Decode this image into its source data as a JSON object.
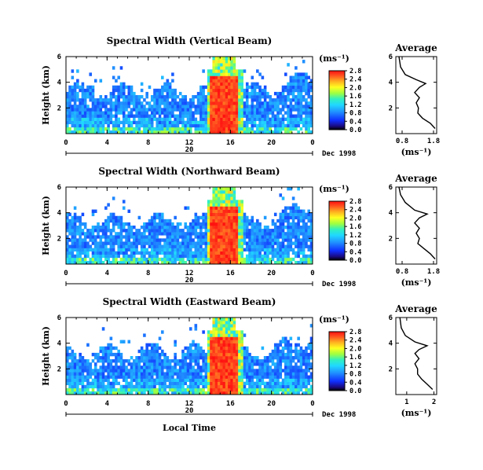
{
  "chart_data": {
    "type": "heatmap",
    "xlabel": "Local Time",
    "panels": [
      {
        "title": "Spectral Width (Vertical Beam)",
        "ylabel": "Height (km)",
        "yticks": [
          "2",
          "4",
          "6"
        ],
        "ylim": [
          0,
          6
        ],
        "xticks": [
          "0",
          "4",
          "8",
          "12",
          "16",
          "20",
          "0"
        ],
        "xlim": [
          0,
          24
        ],
        "day_label": "20",
        "date_label": "Dec 1998",
        "colorbar": {
          "unit": "(ms⁻¹)",
          "ticks": [
            "0.0",
            "0.4",
            "0.8",
            "1.2",
            "1.6",
            "2.0",
            "2.4",
            "2.8"
          ],
          "range": [
            0,
            2.8
          ]
        },
        "average": {
          "title": "Average",
          "xlabel": "(ms⁻¹)",
          "xticks": [
            "0.8",
            "1.8"
          ],
          "xlim": [
            0.6,
            1.9
          ],
          "yticks": [
            "2",
            "4",
            "6"
          ],
          "profile": [
            [
              1.85,
              0.4
            ],
            [
              1.7,
              0.8
            ],
            [
              1.45,
              1.2
            ],
            [
              1.3,
              1.6
            ],
            [
              1.32,
              2.0
            ],
            [
              1.25,
              2.4
            ],
            [
              1.35,
              2.8
            ],
            [
              1.2,
              3.2
            ],
            [
              1.35,
              3.6
            ],
            [
              1.55,
              3.9
            ],
            [
              1.25,
              4.2
            ],
            [
              0.9,
              4.6
            ],
            [
              0.75,
              5.2
            ],
            [
              0.7,
              6.0
            ]
          ]
        }
      },
      {
        "title": "Spectral Width (Northward Beam)",
        "ylabel": "Height (km)",
        "yticks": [
          "2",
          "4",
          "6"
        ],
        "ylim": [
          0,
          6
        ],
        "xticks": [
          "0",
          "4",
          "8",
          "12",
          "16",
          "20",
          "0"
        ],
        "xlim": [
          0,
          24
        ],
        "day_label": "20",
        "date_label": "Dec 1998",
        "colorbar": {
          "unit": "(ms⁻¹)",
          "ticks": [
            "0.0",
            "0.4",
            "0.8",
            "1.2",
            "1.6",
            "2.0",
            "2.4",
            "2.8"
          ],
          "range": [
            0,
            2.8
          ]
        },
        "average": {
          "title": "Average",
          "xlabel": "(ms⁻¹)",
          "xticks": [
            "0.8",
            "1.8"
          ],
          "xlim": [
            0.6,
            1.9
          ],
          "yticks": [
            "2",
            "4",
            "6"
          ],
          "profile": [
            [
              1.85,
              0.4
            ],
            [
              1.7,
              0.8
            ],
            [
              1.5,
              1.2
            ],
            [
              1.3,
              1.6
            ],
            [
              1.35,
              2.0
            ],
            [
              1.25,
              2.4
            ],
            [
              1.35,
              2.8
            ],
            [
              1.2,
              3.2
            ],
            [
              1.35,
              3.6
            ],
            [
              1.6,
              3.9
            ],
            [
              1.2,
              4.2
            ],
            [
              0.9,
              4.8
            ],
            [
              0.75,
              5.4
            ],
            [
              0.7,
              6.0
            ]
          ]
        }
      },
      {
        "title": "Spectral Width (Eastward Beam)",
        "ylabel": "Height (km)",
        "yticks": [
          "2",
          "4",
          "6"
        ],
        "ylim": [
          0,
          6
        ],
        "xticks": [
          "0",
          "4",
          "8",
          "12",
          "16",
          "20",
          "0"
        ],
        "xlim": [
          0,
          24
        ],
        "day_label": "20",
        "date_label": "Dec 1998",
        "colorbar": {
          "unit": "(ms⁻¹)",
          "ticks": [
            "0.0",
            "0.4",
            "0.8",
            "1.2",
            "1.6",
            "2.0",
            "2.4",
            "2.8"
          ],
          "range": [
            0,
            2.8
          ]
        },
        "average": {
          "title": "Average",
          "xlabel": "(ms⁻¹)",
          "xticks": [
            "1",
            "2"
          ],
          "xlim": [
            0.6,
            2.1
          ],
          "yticks": [
            "2",
            "4",
            "6"
          ],
          "profile": [
            [
              1.95,
              0.4
            ],
            [
              1.75,
              0.8
            ],
            [
              1.55,
              1.2
            ],
            [
              1.4,
              1.6
            ],
            [
              1.4,
              2.0
            ],
            [
              1.3,
              2.4
            ],
            [
              1.45,
              2.8
            ],
            [
              1.3,
              3.2
            ],
            [
              1.45,
              3.5
            ],
            [
              1.75,
              3.8
            ],
            [
              1.3,
              4.1
            ],
            [
              0.95,
              4.6
            ],
            [
              0.8,
              5.2
            ],
            [
              0.75,
              6.0
            ]
          ]
        }
      }
    ]
  }
}
